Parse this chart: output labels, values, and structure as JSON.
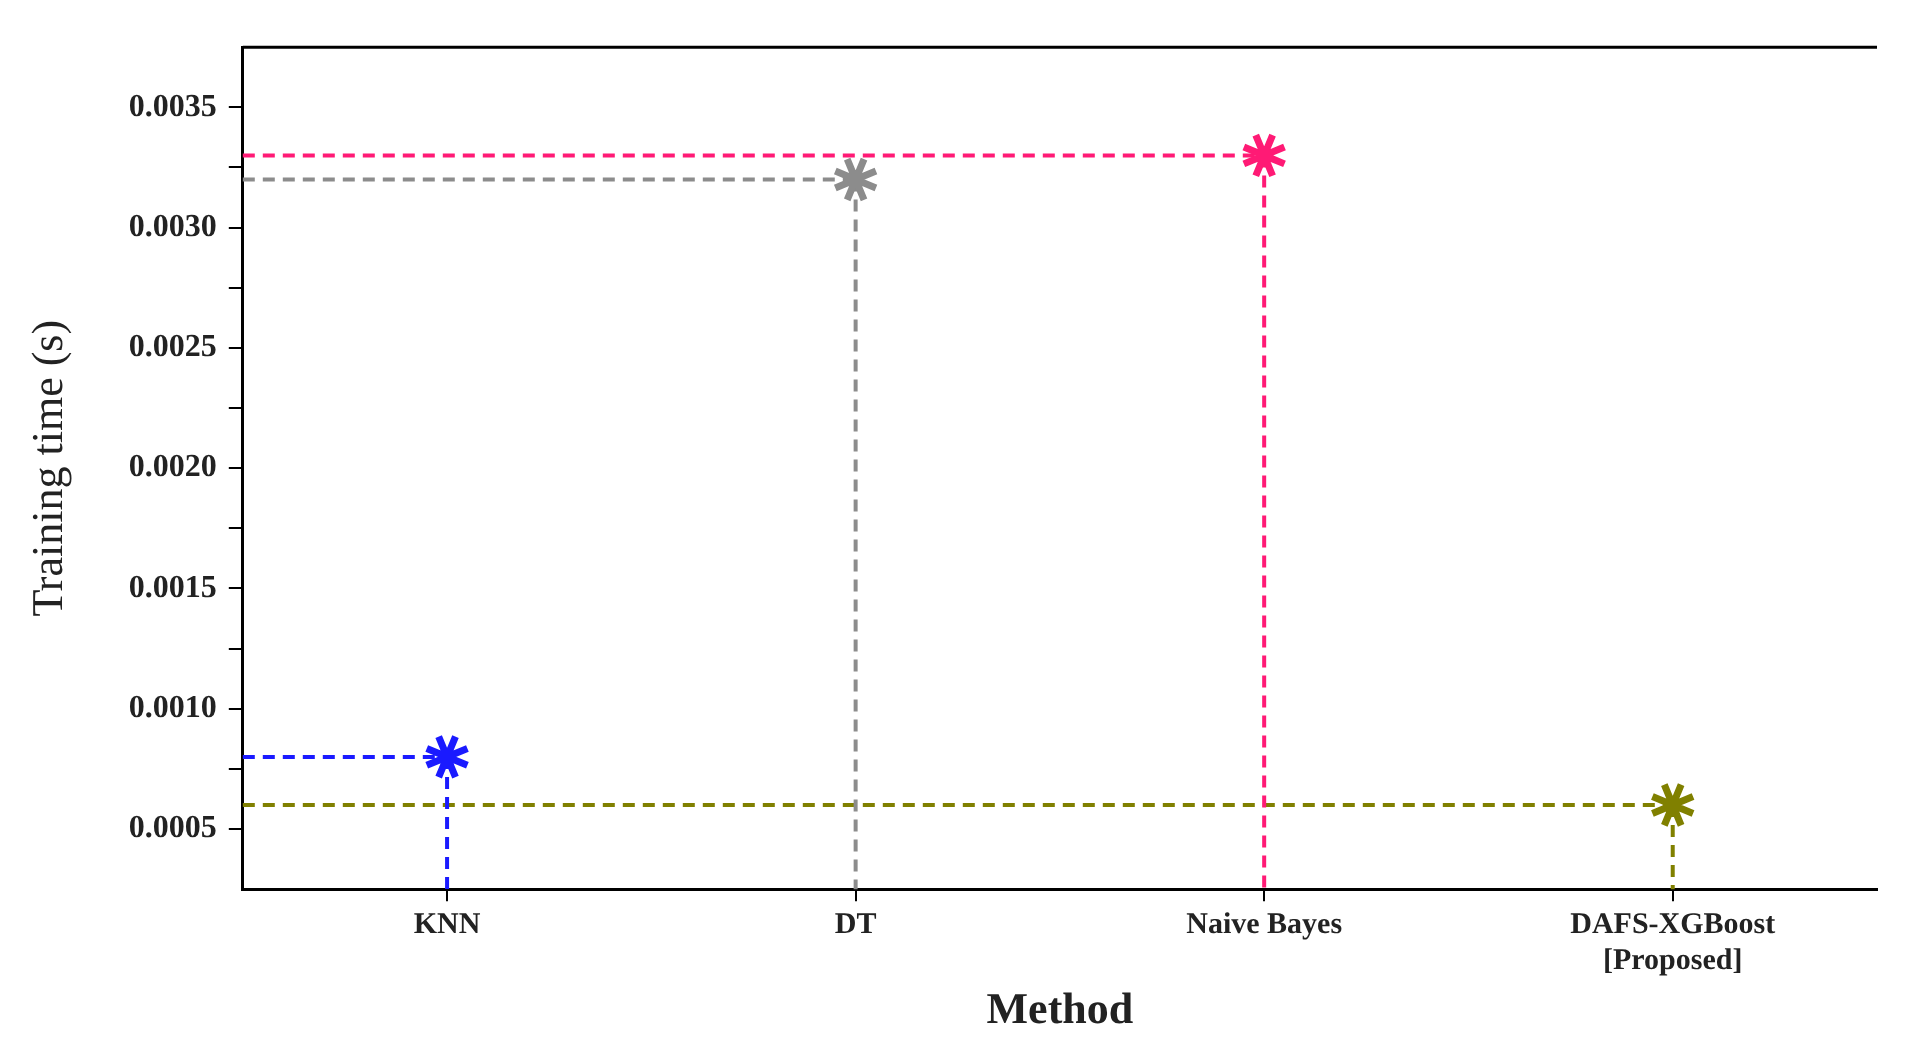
{
  "chart_data": {
    "type": "lollipop",
    "xlabel": "Method",
    "ylabel": "Training time (s)",
    "categories": [
      "KNN",
      "DT",
      "Naive Bayes",
      "DAFS-XGBoost [Proposed]"
    ],
    "values": [
      0.0008,
      0.0032,
      0.0033,
      0.0006
    ],
    "colors": [
      "#1a1aff",
      "#8c8c8c",
      "#ff1a75",
      "#808000"
    ],
    "ylim": [
      0.00025,
      0.00375
    ],
    "yticks": [
      {
        "value": 0.0005,
        "label": "0.0005"
      },
      {
        "value": 0.00075,
        "label": null
      },
      {
        "value": 0.001,
        "label": "0.0010"
      },
      {
        "value": 0.00125,
        "label": null
      },
      {
        "value": 0.0015,
        "label": "0.0015"
      },
      {
        "value": 0.00175,
        "label": null
      },
      {
        "value": 0.002,
        "label": "0.0020"
      },
      {
        "value": 0.00225,
        "label": null
      },
      {
        "value": 0.0025,
        "label": "0.0025"
      },
      {
        "value": 0.00275,
        "label": null
      },
      {
        "value": 0.003,
        "label": "0.0030"
      },
      {
        "value": 0.00325,
        "label": null
      },
      {
        "value": 0.0035,
        "label": "0.0035"
      }
    ],
    "ref_lines": [
      {
        "axis": "y",
        "value": 0.0008,
        "color": "#1a1aff",
        "line_style": "dashed"
      },
      {
        "axis": "y",
        "value": 0.0032,
        "color": "#8c8c8c",
        "line_style": "dashed"
      },
      {
        "axis": "y",
        "value": 0.0033,
        "color": "#ff1a75",
        "line_style": "dashed"
      },
      {
        "axis": "y",
        "value": 0.0006,
        "color": "#808000",
        "line_style": "dashed"
      }
    ],
    "marker": "cross",
    "line_style": "dashed",
    "grid": false,
    "legend": false
  }
}
